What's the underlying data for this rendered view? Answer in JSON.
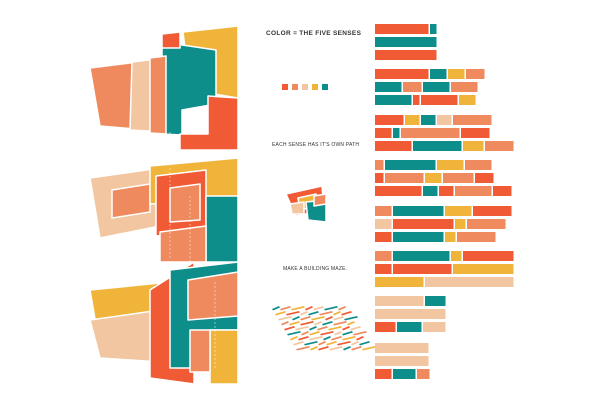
{
  "palette": {
    "orange_red": "#F05A35",
    "salmon": "#EE8A5E",
    "peach": "#F2C6A0",
    "gold": "#F0B43A",
    "teal": "#0E8E8A",
    "divider": "#ffffff"
  },
  "captions": {
    "title": "COLOR = THE FIVE SENSES",
    "path": "EACH SENSE HAS IT'S OWN PATH",
    "maze": "MAKE A BUILDING MAZE."
  },
  "legend_swatches": [
    "orange_red",
    "salmon",
    "peach",
    "gold",
    "teal"
  ]
}
